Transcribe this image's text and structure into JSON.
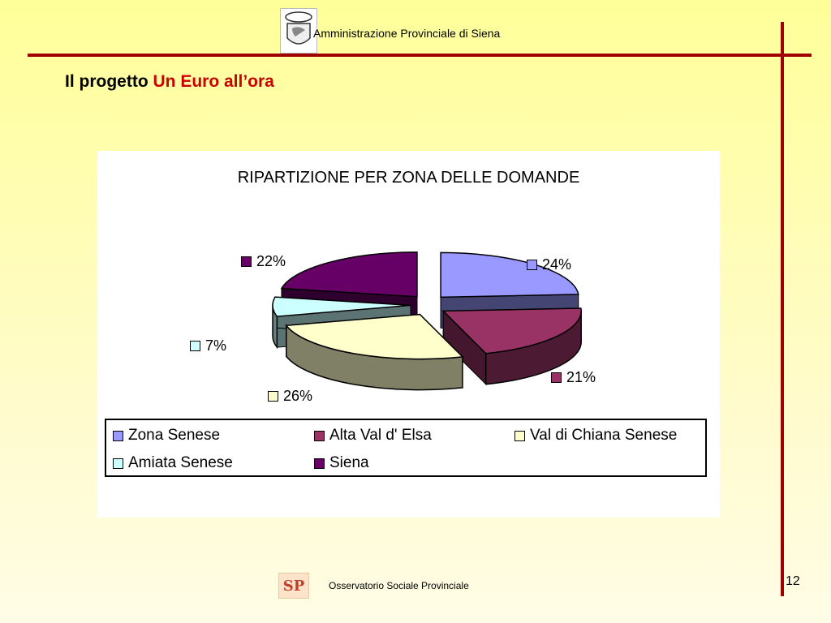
{
  "header": {
    "org": "Amministrazione Provinciale di Siena"
  },
  "slide": {
    "title_part1": "Il progetto ",
    "title_part2": "Un Euro all’ora"
  },
  "footer": {
    "text": "Osservatorio Sociale Provinciale",
    "logo_text": "SP",
    "page": "12"
  },
  "colors": {
    "accent": "#a00000",
    "title_accent": "#cc0000"
  },
  "chart_data": {
    "type": "pie",
    "style": "3d-exploded",
    "title": "RIPARTIZIONE PER ZONA DELLE DOMANDE",
    "legend_position": "bottom",
    "slices": [
      {
        "name": "Zona Senese",
        "value": 24,
        "label": "24%",
        "color": "#9999ff"
      },
      {
        "name": "Alta Val d' Elsa",
        "value": 21,
        "label": "21%",
        "color": "#993366"
      },
      {
        "name": "Val di Chiana Senese",
        "value": 26,
        "label": "26%",
        "color": "#ffffcc"
      },
      {
        "name": "Amiata Senese",
        "value": 7,
        "label": "7%",
        "color": "#ccffff"
      },
      {
        "name": "Siena",
        "value": 22,
        "label": "22%",
        "color": "#660066"
      }
    ]
  }
}
